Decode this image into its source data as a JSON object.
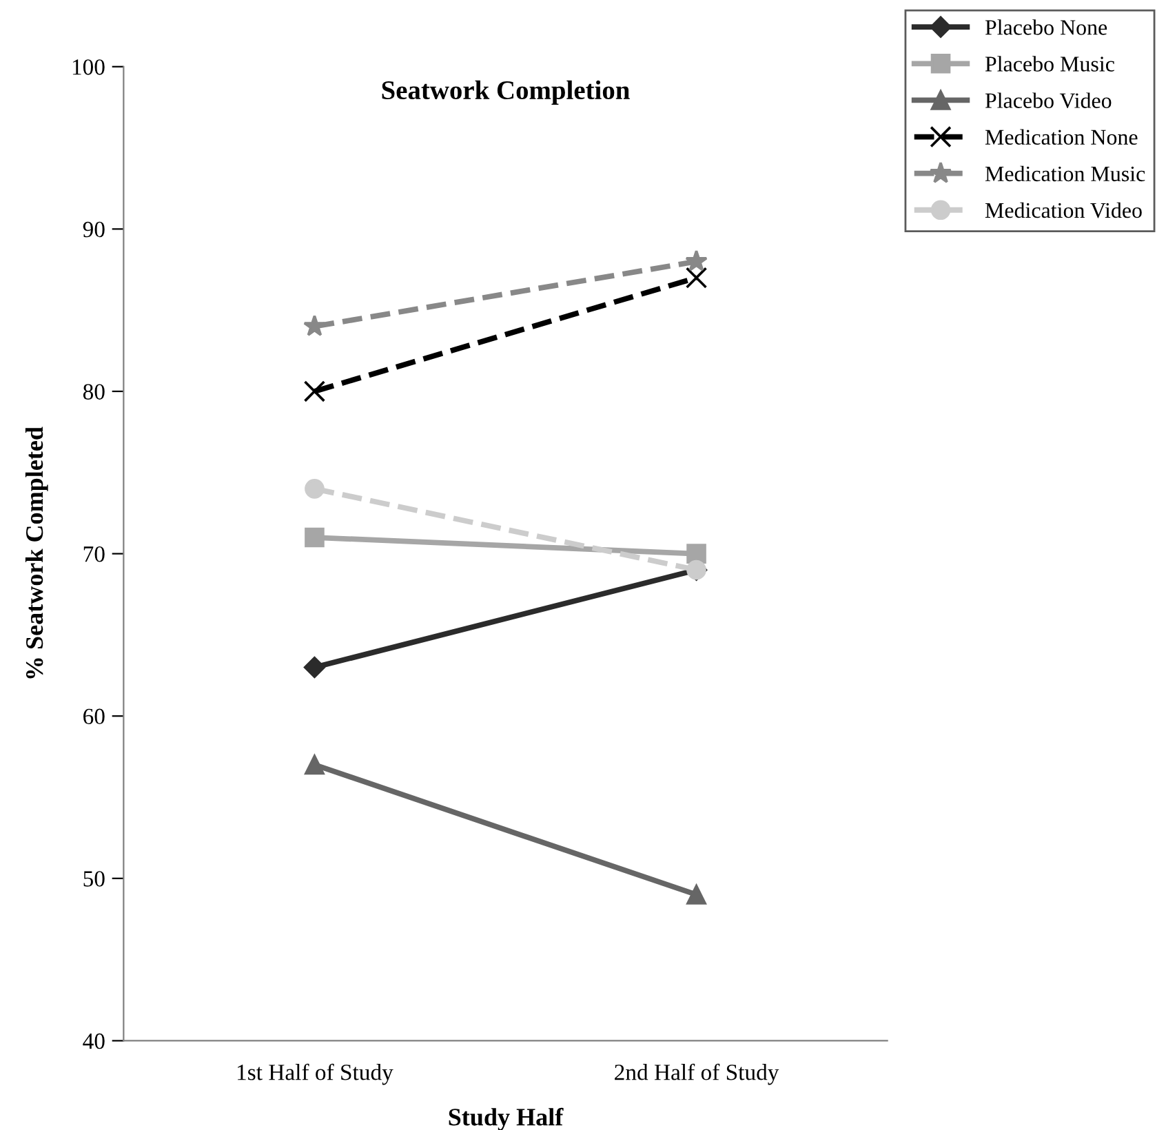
{
  "chart_data": {
    "type": "line",
    "title": "Seatwork Completion",
    "xlabel": "Study Half",
    "ylabel": "% Seatwork Completed",
    "categories": [
      "1st Half of Study",
      "2nd Half of Study"
    ],
    "series": [
      {
        "name": "Placebo None",
        "color": "#2b2b2b",
        "values": [
          63,
          69
        ],
        "marker": "diamond",
        "line_style": "solid"
      },
      {
        "name": "Placebo Music",
        "color": "#a6a6a6",
        "values": [
          71,
          70
        ],
        "marker": "square",
        "line_style": "solid"
      },
      {
        "name": "Placebo Video",
        "color": "#666666",
        "values": [
          57,
          49
        ],
        "marker": "triangle",
        "line_style": "solid"
      },
      {
        "name": "Medication None",
        "color": "#000000",
        "values": [
          80,
          87
        ],
        "marker": "cross",
        "line_style": "dashed"
      },
      {
        "name": "Medication Music",
        "color": "#888888",
        "values": [
          84,
          88
        ],
        "marker": "star",
        "line_style": "dashed"
      },
      {
        "name": "Medication Video",
        "color": "#cccccc",
        "values": [
          74,
          69
        ],
        "marker": "circle",
        "line_style": "dashed"
      }
    ],
    "ylim": [
      40,
      100
    ],
    "yticks": [
      40,
      50,
      60,
      70,
      80,
      90,
      100
    ],
    "grid": false,
    "legend": "top right"
  }
}
